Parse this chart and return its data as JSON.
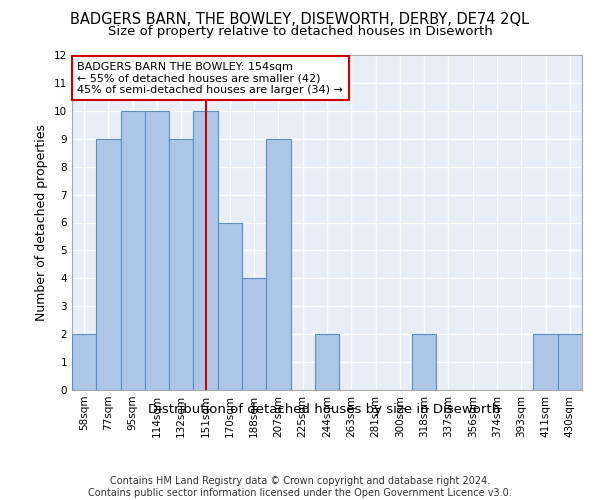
{
  "title": "BADGERS BARN, THE BOWLEY, DISEWORTH, DERBY, DE74 2QL",
  "subtitle": "Size of property relative to detached houses in Diseworth",
  "xlabel": "Distribution of detached houses by size in Diseworth",
  "ylabel": "Number of detached properties",
  "categories": [
    "58sqm",
    "77sqm",
    "95sqm",
    "114sqm",
    "132sqm",
    "151sqm",
    "170sqm",
    "188sqm",
    "207sqm",
    "225sqm",
    "244sqm",
    "263sqm",
    "281sqm",
    "300sqm",
    "318sqm",
    "337sqm",
    "356sqm",
    "374sqm",
    "393sqm",
    "411sqm",
    "430sqm"
  ],
  "values": [
    2,
    9,
    10,
    10,
    9,
    10,
    6,
    4,
    9,
    0,
    2,
    0,
    0,
    0,
    2,
    0,
    0,
    0,
    0,
    2,
    2
  ],
  "bar_color": "#aec6e8",
  "bar_edge_color": "#5a8fc2",
  "highlight_index": 5,
  "highlight_line_color": "#cc0000",
  "annotation_line1": "BADGERS BARN THE BOWLEY: 154sqm",
  "annotation_line2": "← 55% of detached houses are smaller (42)",
  "annotation_line3": "45% of semi-detached houses are larger (34) →",
  "annotation_box_color": "#ffffff",
  "annotation_box_edge_color": "#cc0000",
  "ylim": [
    0,
    12
  ],
  "yticks": [
    0,
    1,
    2,
    3,
    4,
    5,
    6,
    7,
    8,
    9,
    10,
    11,
    12
  ],
  "footer_text": "Contains HM Land Registry data © Crown copyright and database right 2024.\nContains public sector information licensed under the Open Government Licence v3.0.",
  "background_color": "#e8eef8",
  "grid_color": "#ffffff",
  "title_fontsize": 10.5,
  "subtitle_fontsize": 9.5,
  "axis_label_fontsize": 9,
  "tick_fontsize": 7.5,
  "annotation_fontsize": 8,
  "footer_fontsize": 7
}
